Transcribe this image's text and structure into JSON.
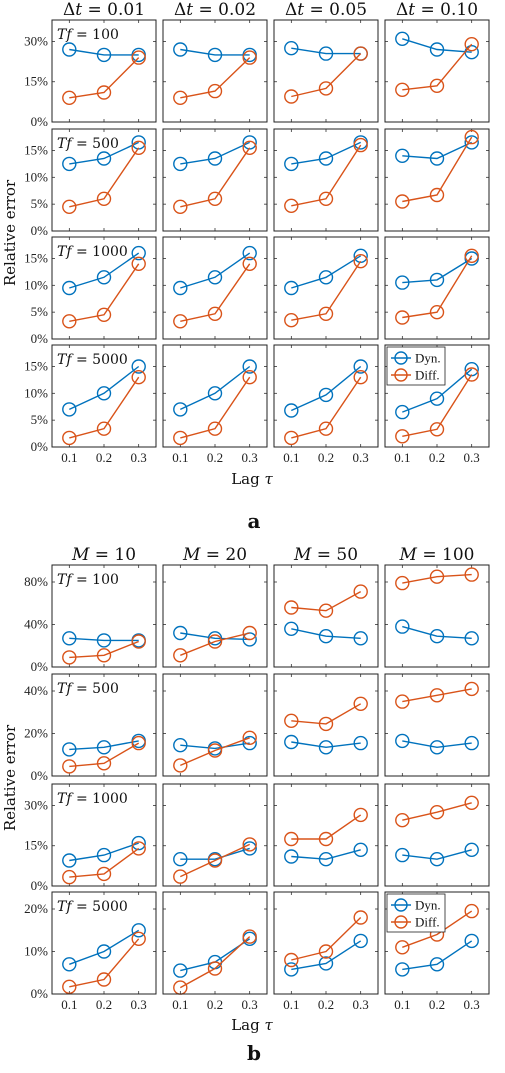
{
  "colors": {
    "dyn": "#0072BD",
    "diff": "#D95319"
  },
  "chart_data": [
    {
      "label": "a",
      "type": "line",
      "col_titles": [
        "Δt = 0.01",
        "Δt = 0.02",
        "Δt = 0.05",
        "Δt = 0.10"
      ],
      "row_titles": [
        "Tf = 100",
        "Tf = 500",
        "Tf = 1000",
        "Tf = 5000"
      ],
      "ylabel": "Relative error",
      "xlabel": "Lag τ",
      "x": [
        0.1,
        0.2,
        0.3
      ],
      "xticks": [
        "0.1",
        "0.2",
        "0.3"
      ],
      "legend": {
        "entries": [
          "Dyn.",
          "Diff."
        ],
        "position": "top-right",
        "panel": [
          3,
          3
        ]
      },
      "rows": [
        {
          "ylim": [
            0,
            0.38
          ],
          "yticks": [
            0,
            0.15,
            0.3
          ],
          "yticklabels": [
            "0%",
            "15%",
            "30%"
          ],
          "panels": [
            {
              "dyn": [
                0.27,
                0.25,
                0.25
              ],
              "diff": [
                0.09,
                0.11,
                0.24
              ]
            },
            {
              "dyn": [
                0.27,
                0.25,
                0.25
              ],
              "diff": [
                0.09,
                0.115,
                0.24
              ]
            },
            {
              "dyn": [
                0.275,
                0.255,
                0.255
              ],
              "diff": [
                0.095,
                0.125,
                0.255
              ]
            },
            {
              "dyn": [
                0.31,
                0.27,
                0.26
              ],
              "diff": [
                0.12,
                0.135,
                0.29
              ]
            }
          ]
        },
        {
          "ylim": [
            0,
            0.19
          ],
          "yticks": [
            0,
            0.05,
            0.1,
            0.15
          ],
          "yticklabels": [
            "0%",
            "5%",
            "10%",
            "15%"
          ],
          "panels": [
            {
              "dyn": [
                0.125,
                0.135,
                0.165
              ],
              "diff": [
                0.045,
                0.06,
                0.155
              ]
            },
            {
              "dyn": [
                0.125,
                0.135,
                0.165
              ],
              "diff": [
                0.045,
                0.06,
                0.155
              ]
            },
            {
              "dyn": [
                0.125,
                0.135,
                0.165
              ],
              "diff": [
                0.047,
                0.06,
                0.16
              ]
            },
            {
              "dyn": [
                0.14,
                0.135,
                0.165
              ],
              "diff": [
                0.055,
                0.067,
                0.175
              ]
            }
          ]
        },
        {
          "ylim": [
            0,
            0.19
          ],
          "yticks": [
            0,
            0.05,
            0.1,
            0.15
          ],
          "yticklabels": [
            "0%",
            "5%",
            "10%",
            "15%"
          ],
          "panels": [
            {
              "dyn": [
                0.095,
                0.115,
                0.16
              ],
              "diff": [
                0.033,
                0.045,
                0.14
              ]
            },
            {
              "dyn": [
                0.095,
                0.115,
                0.16
              ],
              "diff": [
                0.033,
                0.047,
                0.14
              ]
            },
            {
              "dyn": [
                0.095,
                0.115,
                0.155
              ],
              "diff": [
                0.035,
                0.047,
                0.145
              ]
            },
            {
              "dyn": [
                0.105,
                0.11,
                0.15
              ],
              "diff": [
                0.04,
                0.05,
                0.155
              ]
            }
          ]
        },
        {
          "ylim": [
            0,
            0.19
          ],
          "yticks": [
            0,
            0.05,
            0.1,
            0.15
          ],
          "yticklabels": [
            "0%",
            "5%",
            "10%",
            "15%"
          ],
          "panels": [
            {
              "dyn": [
                0.07,
                0.1,
                0.15
              ],
              "diff": [
                0.017,
                0.034,
                0.13
              ]
            },
            {
              "dyn": [
                0.07,
                0.1,
                0.15
              ],
              "diff": [
                0.017,
                0.034,
                0.13
              ]
            },
            {
              "dyn": [
                0.068,
                0.097,
                0.15
              ],
              "diff": [
                0.017,
                0.034,
                0.13
              ]
            },
            {
              "dyn": [
                0.065,
                0.09,
                0.145
              ],
              "diff": [
                0.02,
                0.033,
                0.135
              ]
            }
          ]
        }
      ]
    },
    {
      "label": "b",
      "type": "line",
      "col_titles": [
        "M = 10",
        "M = 20",
        "M = 50",
        "M = 100"
      ],
      "row_titles": [
        "Tf = 100",
        "Tf = 500",
        "Tf = 1000",
        "Tf = 5000"
      ],
      "ylabel": "Relative error",
      "xlabel": "Lag τ",
      "x": [
        0.1,
        0.2,
        0.3
      ],
      "xticks": [
        "0.1",
        "0.2",
        "0.3"
      ],
      "legend": {
        "entries": [
          "Dyn.",
          "Diff."
        ],
        "position": "top-left",
        "panel": [
          3,
          3
        ]
      },
      "rows": [
        {
          "ylim": [
            0,
            0.96
          ],
          "yticks": [
            0,
            0.4,
            0.8
          ],
          "yticklabels": [
            "0%",
            "40%",
            "80%"
          ],
          "panels": [
            {
              "dyn": [
                0.27,
                0.25,
                0.25
              ],
              "diff": [
                0.09,
                0.11,
                0.24
              ]
            },
            {
              "dyn": [
                0.32,
                0.27,
                0.26
              ],
              "diff": [
                0.11,
                0.24,
                0.32
              ]
            },
            {
              "dyn": [
                0.36,
                0.29,
                0.27
              ],
              "diff": [
                0.56,
                0.53,
                0.71
              ]
            },
            {
              "dyn": [
                0.38,
                0.29,
                0.27
              ],
              "diff": [
                0.79,
                0.85,
                0.87
              ]
            }
          ]
        },
        {
          "ylim": [
            0,
            0.48
          ],
          "yticks": [
            0,
            0.2,
            0.4
          ],
          "yticklabels": [
            "0%",
            "20%",
            "40%"
          ],
          "panels": [
            {
              "dyn": [
                0.125,
                0.135,
                0.165
              ],
              "diff": [
                0.045,
                0.06,
                0.155
              ]
            },
            {
              "dyn": [
                0.145,
                0.13,
                0.155
              ],
              "diff": [
                0.05,
                0.12,
                0.18
              ]
            },
            {
              "dyn": [
                0.16,
                0.135,
                0.155
              ],
              "diff": [
                0.26,
                0.245,
                0.34
              ]
            },
            {
              "dyn": [
                0.165,
                0.135,
                0.155
              ],
              "diff": [
                0.35,
                0.38,
                0.41
              ]
            }
          ]
        },
        {
          "ylim": [
            0,
            0.38
          ],
          "yticks": [
            0,
            0.15,
            0.3
          ],
          "yticklabels": [
            "0%",
            "15%",
            "30%"
          ],
          "panels": [
            {
              "dyn": [
                0.095,
                0.115,
                0.16
              ],
              "diff": [
                0.033,
                0.045,
                0.14
              ]
            },
            {
              "dyn": [
                0.1,
                0.1,
                0.14
              ],
              "diff": [
                0.035,
                0.095,
                0.155
              ]
            },
            {
              "dyn": [
                0.11,
                0.1,
                0.135
              ],
              "diff": [
                0.175,
                0.175,
                0.265
              ]
            },
            {
              "dyn": [
                0.115,
                0.1,
                0.135
              ],
              "diff": [
                0.245,
                0.275,
                0.31
              ]
            }
          ]
        },
        {
          "ylim": [
            0,
            0.24
          ],
          "yticks": [
            0,
            0.1,
            0.2
          ],
          "yticklabels": [
            "0%",
            "10%",
            "20%"
          ],
          "panels": [
            {
              "dyn": [
                0.07,
                0.1,
                0.15
              ],
              "diff": [
                0.017,
                0.034,
                0.13
              ]
            },
            {
              "dyn": [
                0.055,
                0.075,
                0.13
              ],
              "diff": [
                0.015,
                0.06,
                0.135
              ]
            },
            {
              "dyn": [
                0.058,
                0.072,
                0.125
              ],
              "diff": [
                0.08,
                0.1,
                0.18
              ]
            },
            {
              "dyn": [
                0.058,
                0.07,
                0.125
              ],
              "diff": [
                0.11,
                0.14,
                0.195
              ]
            }
          ]
        }
      ]
    }
  ]
}
